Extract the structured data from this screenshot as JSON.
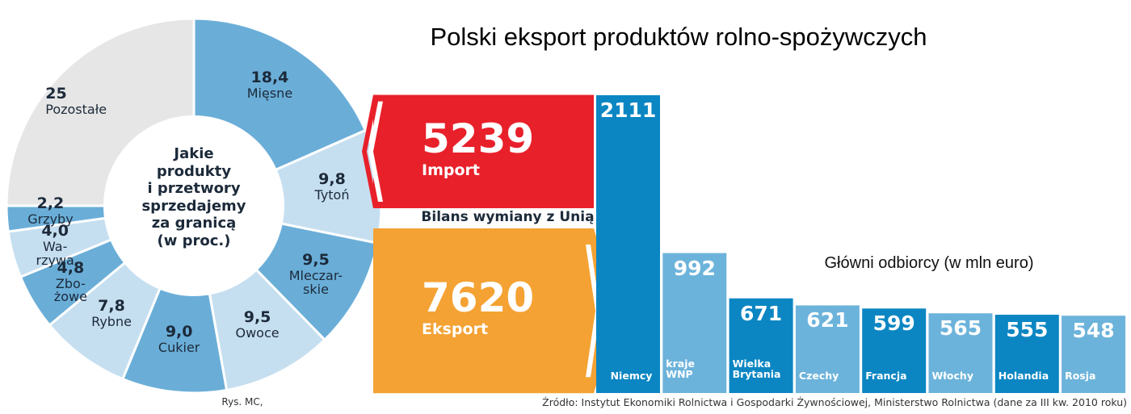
{
  "title": "Polski eksport produktów rolno-spożywczych",
  "footer": {
    "credit": "Rys. MC,",
    "source": "Źródło: Instytut Ekonomiki Rolnictwa i Gospodarki Żywnościowej, Ministerstwo Rolnictwa (dane za III kw. 2010 roku)"
  },
  "chart_data": [
    {
      "type": "pie",
      "title": "Jakie\nprodukty\ni przetwory\nsprzedajemy\nza granicą\n(w proc.)",
      "categories": [
        "Mięsne",
        "Tytoń",
        "Mleczar-\nskie",
        "Owoce",
        "Cukier",
        "Rybne",
        "Zbo-\nżowe",
        "Wa-\nrzywa",
        "Grzyby",
        "Pozostałe"
      ],
      "values": [
        18.4,
        9.8,
        9.5,
        9.5,
        9.0,
        7.8,
        4.8,
        4.0,
        2.2,
        25
      ],
      "value_labels": [
        "18,4",
        "9,8",
        "9,5",
        "9,5",
        "9,0",
        "7,8",
        "4,8",
        "4,0",
        "2,2",
        "25"
      ],
      "colors": [
        "#6aaed8",
        "#c6dff0",
        "#6aaed8",
        "#c6dff0",
        "#6aaed8",
        "#c6dff0",
        "#6aaed8",
        "#c6dff0",
        "#6aaed8",
        "#e6e6e6"
      ]
    },
    {
      "type": "bar",
      "title": "Bilans wymiany z Unią",
      "categories": [
        "Import",
        "Eksport"
      ],
      "values": [
        5239,
        7620
      ],
      "colors": [
        "#e8202a",
        "#f4a233"
      ]
    },
    {
      "type": "bar",
      "title": "Główni odbiorcy (w mln euro)",
      "categories": [
        "Niemcy",
        "kraje\nWNP",
        "Wielka\nBrytania",
        "Czechy",
        "Francja",
        "Włochy",
        "Holandia",
        "Rosja"
      ],
      "values": [
        2111,
        992,
        671,
        621,
        599,
        565,
        555,
        548
      ],
      "colors": [
        "#0b86c3",
        "#6cb3db",
        "#0b86c3",
        "#6cb3db",
        "#0b86c3",
        "#6cb3db",
        "#0b86c3",
        "#6cb3db"
      ]
    }
  ]
}
